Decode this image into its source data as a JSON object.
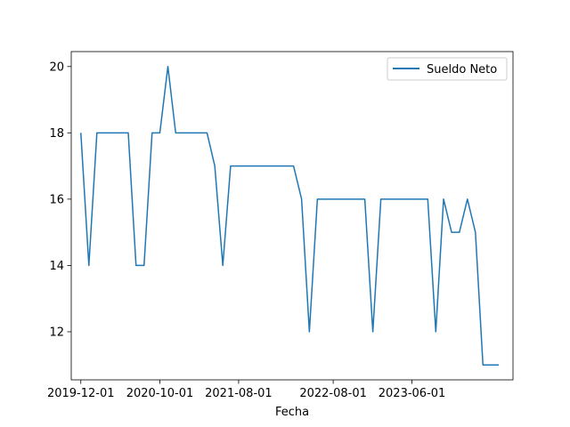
{
  "chart_data": {
    "type": "line",
    "title": "",
    "xlabel": "Fecha",
    "ylabel": "",
    "x_ticks": [
      "2019-12-01",
      "2020-10-01",
      "2021-08-01",
      "2022-08-01",
      "2023-06-01"
    ],
    "y_ticks": [
      12,
      14,
      16,
      18,
      20
    ],
    "xlim": [
      "2019-10-25",
      "2024-06-25"
    ],
    "ylim": [
      10.55,
      20.45
    ],
    "grid": false,
    "legend_position": "upper-right",
    "color": "#1f77b4",
    "series": [
      {
        "name": "Sueldo Neto",
        "x": [
          "2019-12-01",
          "2020-01-01",
          "2020-02-01",
          "2020-03-01",
          "2020-04-01",
          "2020-05-01",
          "2020-06-01",
          "2020-07-01",
          "2020-08-01",
          "2020-09-01",
          "2020-10-01",
          "2020-11-01",
          "2020-12-01",
          "2021-01-01",
          "2021-02-01",
          "2021-03-01",
          "2021-04-01",
          "2021-05-01",
          "2021-06-01",
          "2021-07-01",
          "2021-08-01",
          "2021-09-01",
          "2021-10-01",
          "2021-11-01",
          "2021-12-01",
          "2022-01-01",
          "2022-02-01",
          "2022-03-01",
          "2022-04-01",
          "2022-05-01",
          "2022-06-01",
          "2022-07-01",
          "2022-08-01",
          "2022-09-01",
          "2022-10-01",
          "2022-11-01",
          "2022-12-01",
          "2023-01-01",
          "2023-02-01",
          "2023-03-01",
          "2023-04-01",
          "2023-05-01",
          "2023-06-01",
          "2023-07-01",
          "2023-08-01",
          "2023-09-01",
          "2023-10-01",
          "2023-11-01",
          "2023-12-01",
          "2024-01-01",
          "2024-02-01",
          "2024-03-01",
          "2024-04-01",
          "2024-05-01"
        ],
        "values": [
          18,
          14,
          18,
          18,
          18,
          18,
          18,
          14,
          14,
          18,
          18,
          20,
          18,
          18,
          18,
          18,
          18,
          17,
          14,
          17,
          17,
          17,
          17,
          17,
          17,
          17,
          17,
          17,
          16,
          12,
          16,
          16,
          16,
          16,
          16,
          16,
          16,
          12,
          16,
          16,
          16,
          16,
          16,
          16,
          16,
          12,
          16,
          15,
          15,
          16,
          15,
          11,
          11,
          11
        ]
      }
    ]
  }
}
